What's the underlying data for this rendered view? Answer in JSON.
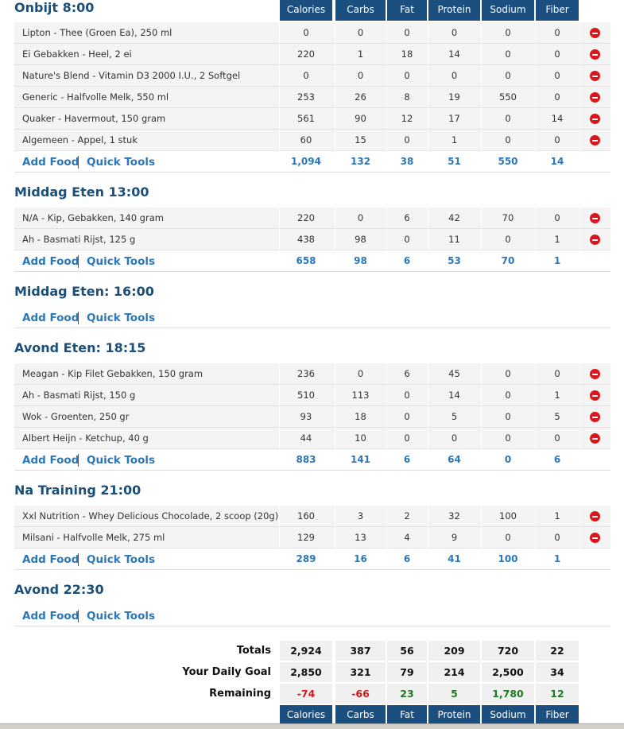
{
  "header": {
    "columns": [
      "Calories",
      "Carbs",
      "Fat",
      "Protein",
      "Sodium",
      "Fiber"
    ]
  },
  "actions": {
    "add_food": "Add Food",
    "quick_tools": "Quick Tools"
  },
  "meals": [
    {
      "name": "Onbijt 8:00",
      "foods": [
        {
          "name": "Lipton - Thee (Groen Ea), 250 ml",
          "values": [
            "0",
            "0",
            "0",
            "0",
            "0",
            "0"
          ]
        },
        {
          "name": "Ei Gebakken - Heel, 2 ei",
          "values": [
            "220",
            "1",
            "18",
            "14",
            "0",
            "0"
          ]
        },
        {
          "name": "Nature's Blend - Vitamin D3 2000 I.U., 2 Softgel",
          "values": [
            "0",
            "0",
            "0",
            "0",
            "0",
            "0"
          ]
        },
        {
          "name": "Generic - Halfvolle Melk, 550 ml",
          "values": [
            "253",
            "26",
            "8",
            "19",
            "550",
            "0"
          ]
        },
        {
          "name": "Quaker - Havermout, 150 gram",
          "values": [
            "561",
            "90",
            "12",
            "17",
            "0",
            "14"
          ]
        },
        {
          "name": "Algemeen - Appel, 1 stuk",
          "values": [
            "60",
            "15",
            "0",
            "1",
            "0",
            "0"
          ]
        }
      ],
      "totals": [
        "1,094",
        "132",
        "38",
        "51",
        "550",
        "14"
      ]
    },
    {
      "name": "Middag Eten 13:00",
      "foods": [
        {
          "name": "N/A - Kip, Gebakken, 140 gram",
          "values": [
            "220",
            "0",
            "6",
            "42",
            "70",
            "0"
          ]
        },
        {
          "name": "Ah - Basmati Rijst, 125 g",
          "values": [
            "438",
            "98",
            "0",
            "11",
            "0",
            "1"
          ]
        }
      ],
      "totals": [
        "658",
        "98",
        "6",
        "53",
        "70",
        "1"
      ]
    },
    {
      "name": "Middag Eten: 16:00",
      "foods": [],
      "totals": null
    },
    {
      "name": "Avond Eten: 18:15",
      "foods": [
        {
          "name": "Meagan - Kip Filet Gebakken, 150 gram",
          "values": [
            "236",
            "0",
            "6",
            "45",
            "0",
            "0"
          ]
        },
        {
          "name": "Ah - Basmati Rijst, 150 g",
          "values": [
            "510",
            "113",
            "0",
            "14",
            "0",
            "1"
          ]
        },
        {
          "name": "Wok - Groenten, 250 gr",
          "values": [
            "93",
            "18",
            "0",
            "5",
            "0",
            "5"
          ]
        },
        {
          "name": "Albert Heijn - Ketchup, 40 g",
          "values": [
            "44",
            "10",
            "0",
            "0",
            "0",
            "0"
          ]
        }
      ],
      "totals": [
        "883",
        "141",
        "6",
        "64",
        "0",
        "6"
      ]
    },
    {
      "name": "Na Training 21:00",
      "foods": [
        {
          "name": "Xxl Nutrition - Whey Delicious Chocolade, 2 scoop (20g)",
          "values": [
            "160",
            "3",
            "2",
            "32",
            "100",
            "1"
          ]
        },
        {
          "name": "Milsani - Halfvolle Melk, 275 ml",
          "values": [
            "129",
            "13",
            "4",
            "9",
            "0",
            "0"
          ]
        }
      ],
      "totals": [
        "289",
        "16",
        "6",
        "41",
        "100",
        "1"
      ]
    },
    {
      "name": "Avond 22:30",
      "foods": [],
      "totals": null
    }
  ],
  "summary": {
    "rows": [
      {
        "label": "Totals",
        "values": [
          "2,924",
          "387",
          "56",
          "209",
          "720",
          "22"
        ]
      },
      {
        "label": "Your Daily Goal",
        "values": [
          "2,850",
          "321",
          "79",
          "214",
          "2,500",
          "34"
        ]
      },
      {
        "label": "Remaining",
        "values": [
          "-74",
          "-66",
          "23",
          "5",
          "1,780",
          "12"
        ]
      }
    ]
  }
}
